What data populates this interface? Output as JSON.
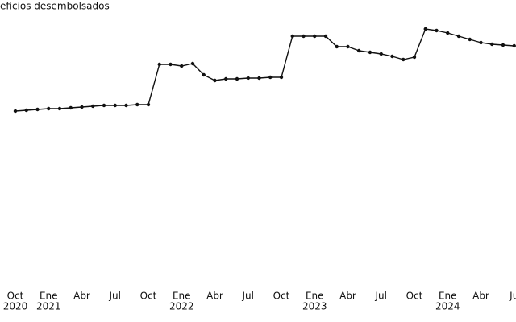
{
  "chart_data": {
    "type": "line",
    "title": "eficios desembolsados",
    "categories": [
      "Oct",
      null,
      null,
      "Ene",
      null,
      null,
      "Abr",
      null,
      null,
      "Jul",
      null,
      null,
      "Oct",
      null,
      null,
      "Ene",
      null,
      null,
      "Abr",
      null,
      null,
      "Jul",
      null,
      null,
      "Oct",
      null,
      null,
      "Ene",
      null,
      null,
      "Abr",
      null,
      null,
      "Jul",
      null,
      null,
      "Oct",
      null,
      null,
      "Ene",
      null,
      null,
      "Abr",
      null,
      null,
      "Ju"
    ],
    "years": [
      "2020",
      null,
      null,
      "2021",
      null,
      null,
      null,
      null,
      null,
      null,
      null,
      null,
      null,
      null,
      null,
      "2022",
      null,
      null,
      null,
      null,
      null,
      null,
      null,
      null,
      null,
      null,
      null,
      "2023",
      null,
      null,
      null,
      null,
      null,
      null,
      null,
      null,
      null,
      null,
      null,
      "2024",
      null,
      null,
      null,
      null,
      null,
      null
    ],
    "values": [
      212,
      213,
      214,
      215,
      215,
      216,
      217,
      218,
      219,
      219,
      219,
      220,
      220,
      270,
      270,
      268,
      271,
      257,
      250,
      252,
      252,
      253,
      253,
      254,
      254,
      305,
      305,
      305,
      305,
      292,
      292,
      287,
      285,
      283,
      280,
      276,
      279,
      314,
      312,
      309,
      305,
      301,
      297,
      295,
      294,
      293
    ],
    "color": "#111111",
    "ylim": [
      0,
      320
    ]
  }
}
